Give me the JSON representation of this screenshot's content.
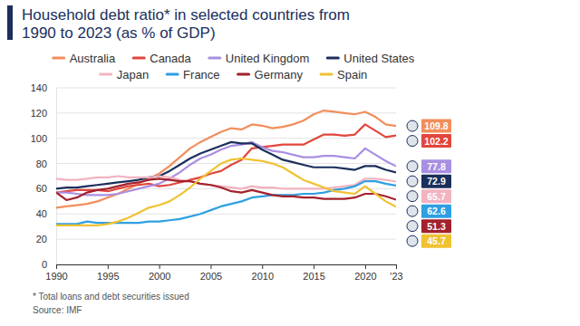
{
  "chart_data": {
    "type": "line",
    "title": "Household debt ratio* in selected countries from 1990 to 2023 (as % of GDP)",
    "footnote": "* Total loans and debt securities issued",
    "source": "Source: IMF",
    "legend": "top",
    "grid": true,
    "x": [
      1990,
      1991,
      1992,
      1993,
      1994,
      1995,
      1996,
      1997,
      1998,
      1999,
      2000,
      2001,
      2002,
      2003,
      2004,
      2005,
      2006,
      2007,
      2008,
      2009,
      2010,
      2011,
      2012,
      2013,
      2014,
      2015,
      2016,
      2017,
      2018,
      2019,
      2020,
      2021,
      2022,
      2023
    ],
    "xlim": [
      1990,
      2023
    ],
    "xticks": [
      1990,
      1995,
      2000,
      2005,
      2010,
      2015,
      2020,
      {
        "value": 2023,
        "label": "'23"
      }
    ],
    "ylim": [
      0,
      140
    ],
    "yticks": [
      0,
      20,
      40,
      60,
      80,
      100,
      120,
      140
    ],
    "series": [
      {
        "name": "Australia",
        "color": "#f28e5c",
        "values": [
          45,
          46,
          47,
          48,
          50,
          53,
          56,
          60,
          64,
          68,
          72,
          78,
          85,
          92,
          97,
          101,
          105,
          108,
          107,
          111,
          110,
          108,
          109,
          111,
          114,
          119,
          122,
          121,
          120,
          119,
          121,
          117,
          111,
          109.8
        ],
        "value_labels": [
          null,
          null,
          null,
          null,
          null,
          null,
          null,
          null,
          null,
          null,
          null,
          null,
          null,
          null,
          null,
          null,
          null,
          null,
          null,
          null,
          null,
          null,
          null,
          null,
          null,
          null,
          null,
          null,
          null,
          null,
          null,
          null,
          null,
          "109.8"
        ]
      },
      {
        "name": "Canada",
        "color": "#e2463c",
        "values": [
          57,
          58,
          59,
          59,
          59,
          58,
          60,
          62,
          63,
          64,
          62,
          63,
          65,
          67,
          69,
          72,
          74,
          79,
          83,
          92,
          93,
          94,
          95,
          95,
          95,
          99,
          103,
          103,
          102,
          103,
          111,
          106,
          101,
          102.2
        ],
        "value_labels": [
          null,
          null,
          null,
          null,
          null,
          null,
          null,
          null,
          null,
          null,
          null,
          null,
          null,
          null,
          null,
          null,
          null,
          null,
          null,
          null,
          null,
          null,
          null,
          null,
          null,
          null,
          null,
          null,
          null,
          null,
          null,
          null,
          null,
          "102.2"
        ]
      },
      {
        "name": "United Kingdom",
        "color": "#a98fe2",
        "values": [
          57,
          57,
          56,
          55,
          55,
          55,
          56,
          58,
          60,
          62,
          64,
          68,
          73,
          79,
          84,
          87,
          91,
          94,
          95,
          97,
          93,
          90,
          89,
          87,
          85,
          85,
          86,
          86,
          85,
          84,
          92,
          87,
          82,
          77.8
        ],
        "value_labels": [
          null,
          null,
          null,
          null,
          null,
          null,
          null,
          null,
          null,
          null,
          null,
          null,
          null,
          null,
          null,
          null,
          null,
          null,
          null,
          null,
          null,
          null,
          null,
          null,
          null,
          null,
          null,
          null,
          null,
          null,
          null,
          null,
          null,
          "77.8"
        ]
      },
      {
        "name": "United States",
        "color": "#1b2f5c",
        "values": [
          60,
          61,
          61,
          62,
          63,
          64,
          65,
          66,
          67,
          69,
          70,
          74,
          79,
          84,
          88,
          91,
          94,
          97,
          96,
          96,
          91,
          87,
          83,
          81,
          79,
          77,
          77,
          77,
          76,
          75,
          78,
          78,
          75,
          72.9
        ],
        "value_labels": [
          null,
          null,
          null,
          null,
          null,
          null,
          null,
          null,
          null,
          null,
          null,
          null,
          null,
          null,
          null,
          null,
          null,
          null,
          null,
          null,
          null,
          null,
          null,
          null,
          null,
          null,
          null,
          null,
          null,
          null,
          null,
          null,
          null,
          "72.9"
        ]
      },
      {
        "name": "Japan",
        "color": "#f2b3c1",
        "values": [
          68,
          67,
          67,
          68,
          69,
          69,
          70,
          69,
          69,
          69,
          70,
          69,
          67,
          66,
          64,
          63,
          62,
          61,
          60,
          62,
          61,
          61,
          60,
          60,
          60,
          60,
          60,
          61,
          62,
          63,
          68,
          68,
          67,
          65.7
        ],
        "value_labels": [
          null,
          null,
          null,
          null,
          null,
          null,
          null,
          null,
          null,
          null,
          null,
          null,
          null,
          null,
          null,
          null,
          null,
          null,
          null,
          null,
          null,
          null,
          null,
          null,
          null,
          null,
          null,
          null,
          null,
          null,
          null,
          null,
          null,
          "65.7"
        ]
      },
      {
        "name": "France",
        "color": "#2f9fe2",
        "values": [
          32,
          32,
          32,
          34,
          33,
          33,
          33,
          33,
          33,
          34,
          34,
          35,
          36,
          38,
          40,
          43,
          46,
          48,
          50,
          53,
          54,
          55,
          55,
          55,
          56,
          56,
          57,
          59,
          60,
          62,
          66,
          66,
          64,
          62.6
        ],
        "value_labels": [
          null,
          null,
          null,
          null,
          null,
          null,
          null,
          null,
          null,
          null,
          null,
          null,
          null,
          null,
          null,
          null,
          null,
          null,
          null,
          null,
          null,
          null,
          null,
          null,
          null,
          null,
          null,
          null,
          null,
          null,
          null,
          null,
          null,
          "62.6"
        ]
      },
      {
        "name": "Germany",
        "color": "#a3212c",
        "values": [
          57,
          51,
          53,
          57,
          59,
          60,
          62,
          64,
          65,
          67,
          68,
          67,
          66,
          66,
          64,
          63,
          61,
          58,
          57,
          59,
          57,
          55,
          54,
          54,
          53,
          53,
          52,
          52,
          52,
          53,
          56,
          56,
          54,
          51.3
        ],
        "value_labels": [
          null,
          null,
          null,
          null,
          null,
          null,
          null,
          null,
          null,
          null,
          null,
          null,
          null,
          null,
          null,
          null,
          null,
          null,
          null,
          null,
          null,
          null,
          null,
          null,
          null,
          null,
          null,
          null,
          null,
          null,
          null,
          null,
          null,
          "51.3"
        ]
      },
      {
        "name": "Spain",
        "color": "#f0c232",
        "values": [
          31,
          31,
          31,
          31,
          31,
          32,
          34,
          37,
          41,
          45,
          47,
          50,
          55,
          61,
          68,
          74,
          80,
          83,
          84,
          83,
          82,
          80,
          77,
          72,
          67,
          64,
          61,
          58,
          57,
          56,
          62,
          56,
          50,
          45.7
        ],
        "value_labels": [
          null,
          null,
          null,
          null,
          null,
          null,
          null,
          null,
          null,
          null,
          null,
          null,
          null,
          null,
          null,
          null,
          null,
          null,
          null,
          null,
          null,
          null,
          null,
          null,
          null,
          null,
          null,
          null,
          null,
          null,
          null,
          null,
          null,
          "45.7"
        ]
      }
    ]
  }
}
